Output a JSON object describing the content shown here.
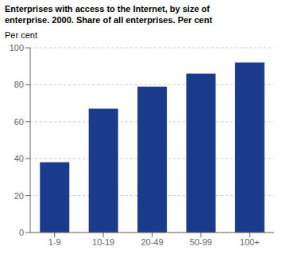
{
  "chart_data": {
    "type": "bar",
    "title": "Enterprises with access to the Internet, by size of\nenterprise. 2000. Share of all enterprises. Per cent",
    "ylabel": "Per cent",
    "categories": [
      "1-9",
      "10-19",
      "20-49",
      "50-99",
      "100+"
    ],
    "values": [
      38,
      67,
      79,
      86,
      92
    ],
    "color": "#1a3a8c",
    "ylim": [
      0,
      100
    ],
    "yticks": [
      0,
      20,
      40,
      60,
      80,
      100
    ],
    "grid": true
  }
}
